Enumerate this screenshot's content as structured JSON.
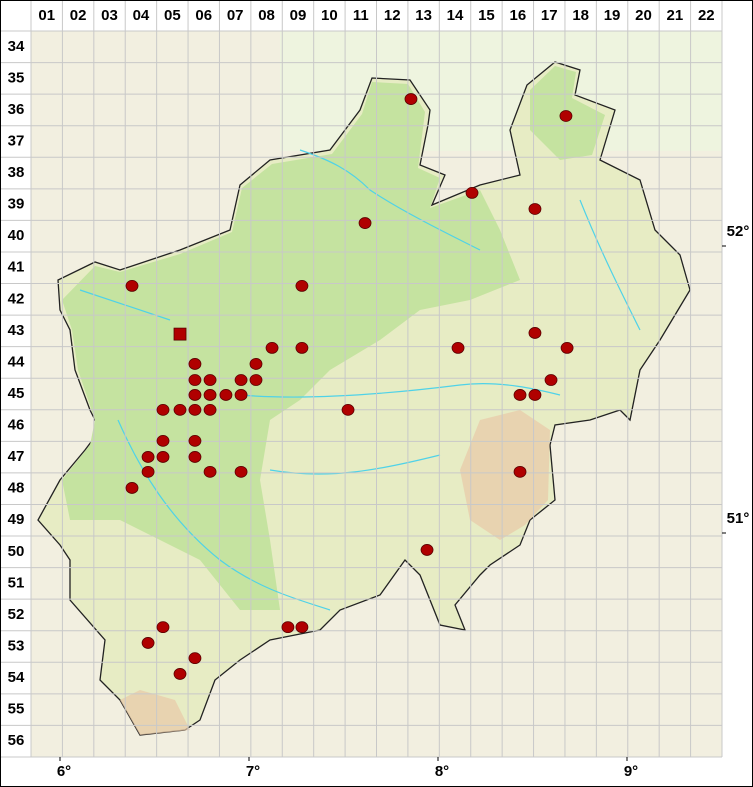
{
  "columns": [
    "01",
    "02",
    "03",
    "04",
    "05",
    "06",
    "07",
    "08",
    "09",
    "10",
    "11",
    "12",
    "13",
    "14",
    "15",
    "16",
    "17",
    "18",
    "19",
    "20",
    "21",
    "22"
  ],
  "rows": [
    "34",
    "35",
    "36",
    "37",
    "38",
    "39",
    "40",
    "41",
    "42",
    "43",
    "44",
    "45",
    "46",
    "47",
    "48",
    "49",
    "50",
    "51",
    "52",
    "53",
    "54",
    "55",
    "56"
  ],
  "longitudes": [
    {
      "value": 6,
      "label": "6°"
    },
    {
      "value": 7,
      "label": "7°"
    },
    {
      "value": 8,
      "label": "8°"
    },
    {
      "value": 9,
      "label": "9°"
    }
  ],
  "latitudes": [
    {
      "value": 52,
      "label": "52°"
    },
    {
      "value": 51,
      "label": "51°"
    }
  ],
  "records": [
    {
      "lon": 7.857,
      "lat": 52.512,
      "marker": "circle"
    },
    {
      "lon": 8.677,
      "lat": 52.453,
      "marker": "circle"
    },
    {
      "lon": 8.18,
      "lat": 52.185,
      "marker": "circle"
    },
    {
      "lon": 8.513,
      "lat": 52.129,
      "marker": "circle"
    },
    {
      "lon": 7.614,
      "lat": 52.08,
      "marker": "circle"
    },
    {
      "lon": 6.381,
      "lat": 51.861,
      "marker": "circle"
    },
    {
      "lon": 7.28,
      "lat": 51.861,
      "marker": "circle"
    },
    {
      "lon": 6.635,
      "lat": 51.693,
      "marker": "square"
    },
    {
      "lon": 8.513,
      "lat": 51.697,
      "marker": "circle"
    },
    {
      "lon": 7.122,
      "lat": 51.645,
      "marker": "circle"
    },
    {
      "lon": 7.28,
      "lat": 51.645,
      "marker": "circle"
    },
    {
      "lon": 8.106,
      "lat": 51.645,
      "marker": "circle"
    },
    {
      "lon": 8.683,
      "lat": 51.645,
      "marker": "circle"
    },
    {
      "lon": 6.714,
      "lat": 51.589,
      "marker": "circle"
    },
    {
      "lon": 7.037,
      "lat": 51.589,
      "marker": "circle"
    },
    {
      "lon": 6.714,
      "lat": 51.533,
      "marker": "circle"
    },
    {
      "lon": 6.794,
      "lat": 51.533,
      "marker": "circle"
    },
    {
      "lon": 6.958,
      "lat": 51.533,
      "marker": "circle"
    },
    {
      "lon": 7.037,
      "lat": 51.533,
      "marker": "circle"
    },
    {
      "lon": 8.598,
      "lat": 51.533,
      "marker": "circle"
    },
    {
      "lon": 6.714,
      "lat": 51.481,
      "marker": "circle"
    },
    {
      "lon": 6.794,
      "lat": 51.481,
      "marker": "circle"
    },
    {
      "lon": 6.878,
      "lat": 51.481,
      "marker": "circle"
    },
    {
      "lon": 6.958,
      "lat": 51.481,
      "marker": "circle"
    },
    {
      "lon": 8.434,
      "lat": 51.481,
      "marker": "circle"
    },
    {
      "lon": 8.513,
      "lat": 51.481,
      "marker": "circle"
    },
    {
      "lon": 6.545,
      "lat": 51.429,
      "marker": "circle"
    },
    {
      "lon": 6.635,
      "lat": 51.429,
      "marker": "circle"
    },
    {
      "lon": 6.714,
      "lat": 51.429,
      "marker": "circle"
    },
    {
      "lon": 6.794,
      "lat": 51.429,
      "marker": "circle"
    },
    {
      "lon": 7.524,
      "lat": 51.429,
      "marker": "circle"
    },
    {
      "lon": 6.545,
      "lat": 51.321,
      "marker": "circle"
    },
    {
      "lon": 6.714,
      "lat": 51.321,
      "marker": "circle"
    },
    {
      "lon": 6.545,
      "lat": 51.265,
      "marker": "circle"
    },
    {
      "lon": 6.466,
      "lat": 51.265,
      "marker": "circle"
    },
    {
      "lon": 6.714,
      "lat": 51.265,
      "marker": "circle"
    },
    {
      "lon": 6.466,
      "lat": 51.213,
      "marker": "circle"
    },
    {
      "lon": 6.794,
      "lat": 51.213,
      "marker": "circle"
    },
    {
      "lon": 6.958,
      "lat": 51.213,
      "marker": "circle"
    },
    {
      "lon": 8.434,
      "lat": 51.213,
      "marker": "circle"
    },
    {
      "lon": 6.381,
      "lat": 51.157,
      "marker": "circle"
    },
    {
      "lon": 7.942,
      "lat": 50.941,
      "marker": "circle"
    },
    {
      "lon": 6.545,
      "lat": 50.672,
      "marker": "circle"
    },
    {
      "lon": 7.206,
      "lat": 50.672,
      "marker": "circle"
    },
    {
      "lon": 7.28,
      "lat": 50.672,
      "marker": "circle"
    },
    {
      "lon": 6.466,
      "lat": 50.617,
      "marker": "circle"
    },
    {
      "lon": 6.714,
      "lat": 50.564,
      "marker": "circle"
    },
    {
      "lon": 6.635,
      "lat": 50.509,
      "marker": "circle"
    }
  ]
}
